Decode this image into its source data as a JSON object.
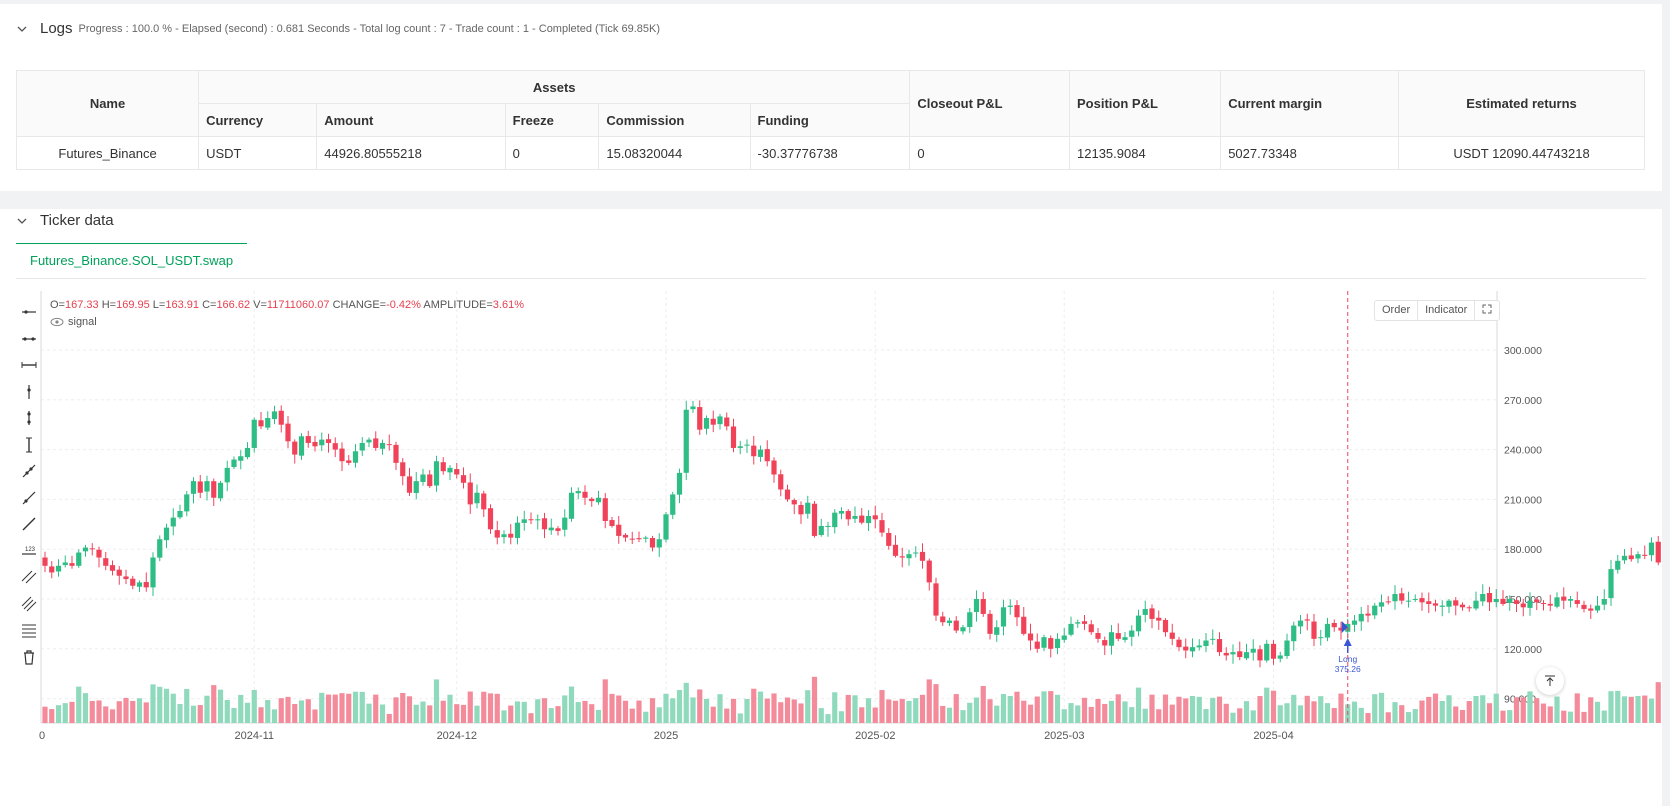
{
  "logs": {
    "title": "Logs",
    "summary": "Progress : 100.0 % - Elapsed (second) : 0.681  Seconds - Total log count : 7 - Trade count : 1 - Completed (Tick 69.85K)"
  },
  "assets_table": {
    "headers": {
      "name": "Name",
      "assets": "Assets",
      "closeout": "Closeout P&L",
      "position": "Position P&L",
      "margin": "Current margin",
      "returns": "Estimated returns",
      "currency": "Currency",
      "amount": "Amount",
      "freeze": "Freeze",
      "commission": "Commission",
      "funding": "Funding"
    },
    "row": {
      "name": "Futures_Binance",
      "currency": "USDT",
      "amount": "44926.80555218",
      "freeze": "0",
      "commission": "15.08320044",
      "funding": "-30.37776738",
      "closeout": "0",
      "position": "12135.9084",
      "margin": "5027.73348",
      "returns": "USDT 12090.44743218"
    }
  },
  "ticker": {
    "title": "Ticker data",
    "tab": "Futures_Binance.SOL_USDT.swap",
    "ohlc": {
      "o_label": "O=",
      "o": "167.33",
      "h_label": "H=",
      "h": "169.95",
      "l_label": "L=",
      "l": "163.91",
      "c_label": "C=",
      "c": "166.62",
      "v_label": "V=",
      "v": "11711060.07",
      "change_label": "CHANGE=",
      "change": "-0.42%",
      "amp_label": "AMPLITUDE=",
      "amp": "3.61%"
    },
    "signal_label": "signal",
    "buttons": {
      "order": "Order",
      "indicator": "Indicator"
    }
  },
  "chart_data": {
    "type": "candlestick",
    "y_ticks": [
      90,
      120,
      150,
      180,
      210,
      240,
      270,
      300
    ],
    "y_tick_labels": [
      "90.000",
      "120.000",
      "150.000",
      "180.000",
      "210.000",
      "240.000",
      "270.000",
      "300.000"
    ],
    "x_labels": [
      "0",
      "2024-11",
      "2024-12",
      "2025",
      "2025-02",
      "2025-03",
      "2025-04"
    ],
    "x_label_index": [
      0,
      31,
      61,
      92,
      123,
      151,
      182
    ],
    "closes": [
      170,
      166,
      170,
      172,
      170,
      178,
      181,
      180,
      175,
      170,
      167,
      164,
      162,
      158,
      160,
      157,
      175,
      186,
      193,
      199,
      203,
      213,
      221,
      214,
      221,
      211,
      220,
      229,
      234,
      236,
      241,
      258,
      254,
      259,
      263,
      255,
      245,
      237,
      248,
      244,
      242,
      246,
      244,
      240,
      233,
      232,
      239,
      244,
      246,
      241,
      244,
      243,
      232,
      224,
      214,
      221,
      225,
      218,
      233,
      227,
      229,
      225,
      220,
      207,
      214,
      204,
      192,
      187,
      189,
      187,
      196,
      198,
      198,
      198,
      192,
      193,
      191,
      199,
      214,
      215,
      211,
      209,
      211,
      197,
      194,
      188,
      187,
      186,
      186,
      187,
      181,
      186,
      201,
      213,
      226,
      264,
      266,
      252,
      259,
      255,
      260,
      254,
      241,
      242,
      243,
      236,
      240,
      233,
      225,
      216,
      210,
      207,
      201,
      208,
      188,
      194,
      194,
      202,
      203,
      198,
      200,
      196,
      200,
      198,
      190,
      182,
      176,
      175,
      177,
      178,
      173,
      160,
      140,
      136,
      137,
      131,
      133,
      142,
      150,
      141,
      129,
      133,
      145,
      146,
      139,
      129,
      125,
      120,
      127,
      120,
      126,
      128,
      135,
      136,
      135,
      130,
      126,
      122,
      130,
      126,
      127,
      131,
      140,
      144,
      138,
      137,
      130,
      126,
      121,
      119,
      121,
      122,
      125,
      126,
      118,
      116,
      118,
      115,
      118,
      120,
      113,
      123,
      114,
      116,
      125,
      134,
      137,
      137,
      126,
      127,
      135,
      133,
      131,
      135,
      137,
      141,
      140,
      146,
      148,
      148,
      153,
      149,
      149,
      150,
      148,
      147,
      146,
      146,
      149,
      146,
      145,
      145,
      149,
      153,
      148,
      150,
      147,
      150,
      147,
      145,
      149,
      148,
      147,
      146,
      151,
      149,
      150,
      147,
      144,
      143,
      146,
      150,
      168,
      173,
      176,
      174,
      177,
      176,
      184,
      172,
      171,
      168,
      169,
      166
    ],
    "signal": {
      "label": "Long",
      "value": "375.26",
      "index": 193
    }
  }
}
